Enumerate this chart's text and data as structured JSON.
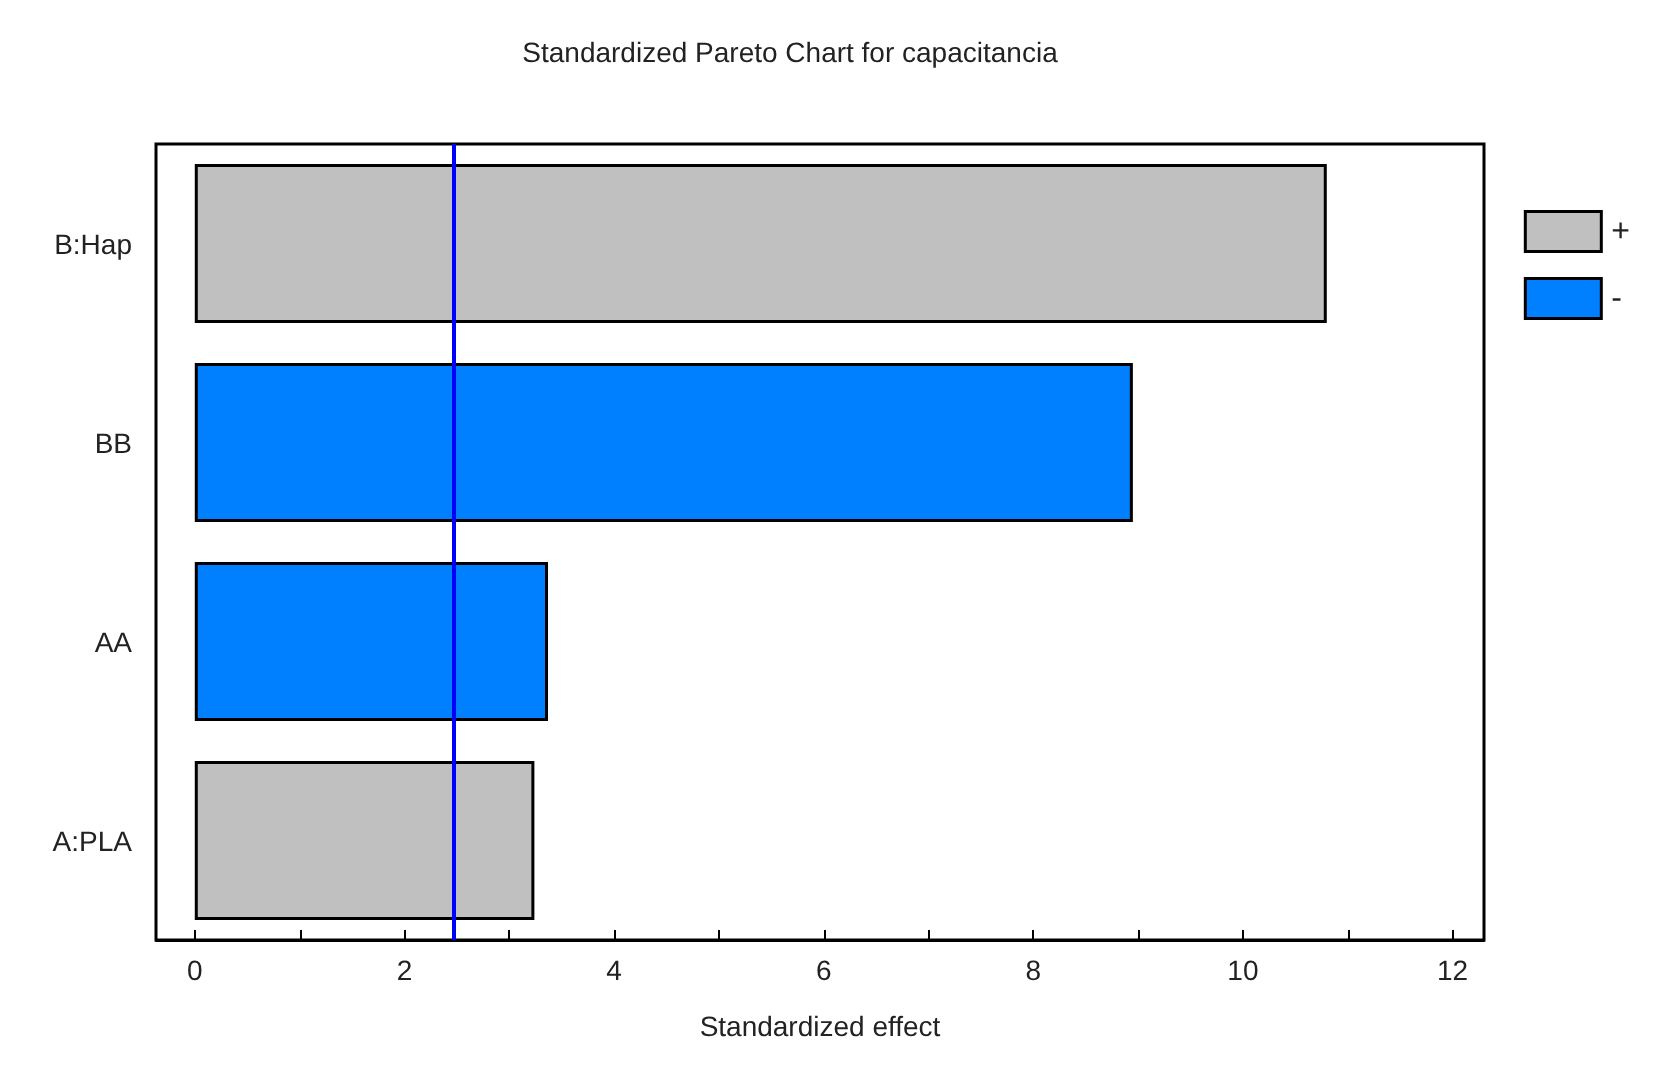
{
  "chart_data": {
    "type": "bar",
    "orientation": "horizontal",
    "stacked": true,
    "title": "Standardized Pareto Chart for capacitancia",
    "xlabel": "Standardized effect",
    "categories": [
      "B:Hap",
      "BB",
      "AA",
      "A:PLA"
    ],
    "series": [
      {
        "name": "+",
        "color": "#c0c0c0",
        "values": [
          10.8,
          null,
          null,
          3.24
        ]
      },
      {
        "name": "-",
        "color": "#0080ff",
        "values": [
          null,
          8.95,
          3.37,
          null
        ]
      }
    ],
    "xlim": [
      -0.37,
      12.3
    ],
    "xticks": [
      0,
      {
        "value": 1,
        "label": null
      },
      2,
      {
        "value": 3,
        "label": null
      },
      4,
      {
        "value": 5,
        "label": null
      },
      6,
      {
        "value": 7,
        "label": null
      },
      8,
      {
        "value": 9,
        "label": null
      },
      10,
      {
        "value": 11,
        "label": null
      },
      12
    ],
    "ref_lines": [
      {
        "axis": "x",
        "value": 2.47,
        "color": "#0000ff"
      }
    ],
    "legend": "right",
    "grid": false
  }
}
